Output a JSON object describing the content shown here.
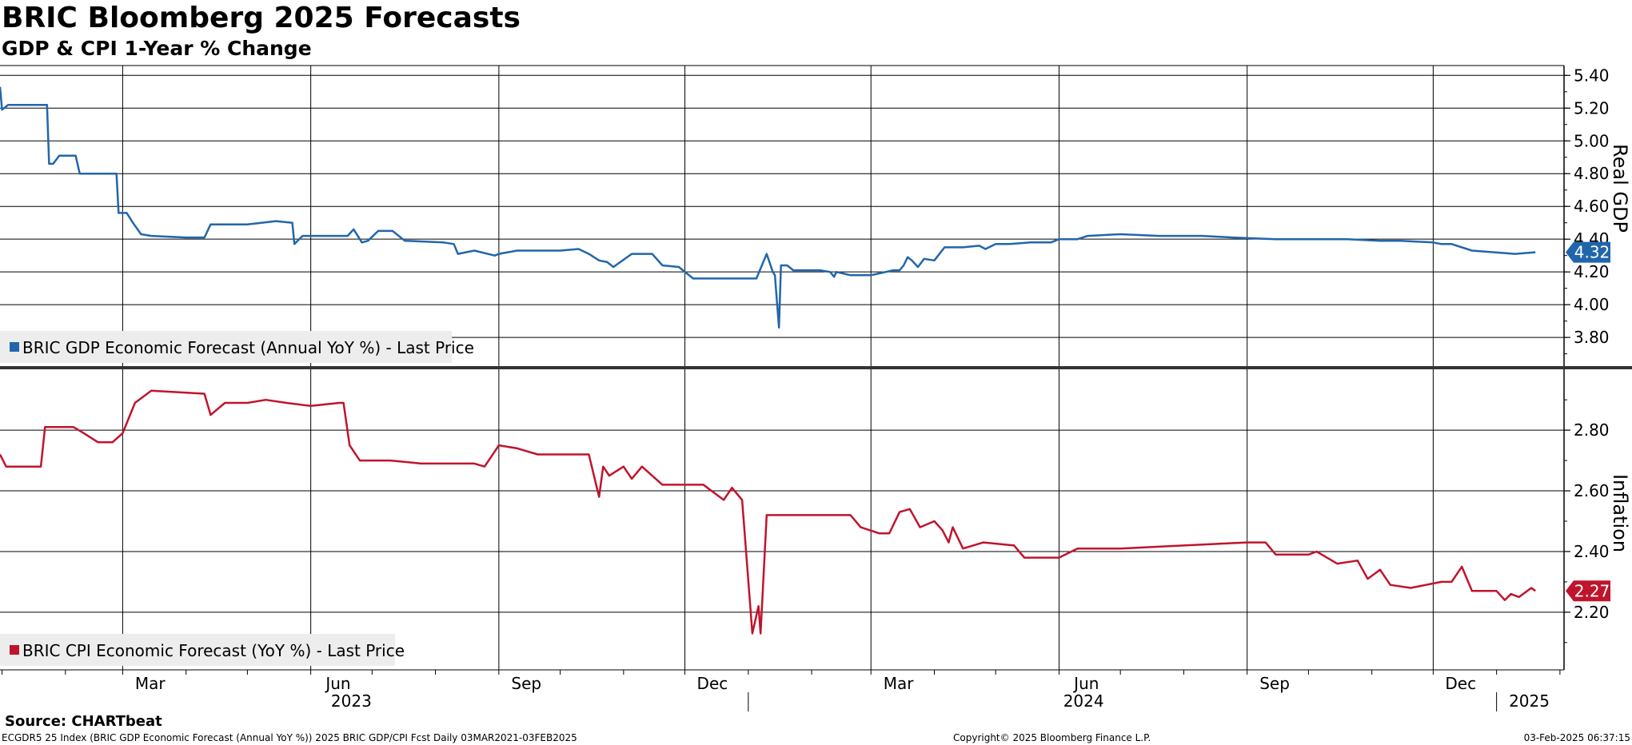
{
  "title": "BRIC Bloomberg 2025 Forecasts",
  "subtitle": "GDP & CPI 1-Year % Change",
  "source": "Source: CHARTbeat",
  "footer": {
    "left": "ECGDR5 25 Index (BRIC GDP Economic Forecast (Annual YoY %)) 2025 BRIC GDP/CPI Fcst  Daily 03MAR2021-03FEB2025",
    "middle": "Copyright© 2025 Bloomberg Finance L.P.",
    "right": "03-Feb-2025 06:37:15"
  },
  "chart_data": [
    {
      "type": "line",
      "ylabel": "Real GDP",
      "ylim": [
        3.62,
        5.46
      ],
      "yticks": [
        3.8,
        4.0,
        4.2,
        4.4,
        4.6,
        4.8,
        5.0,
        5.2,
        5.4
      ],
      "ytick_labels": [
        "3.80",
        "4.00",
        "4.20",
        "4.40",
        "4.60",
        "4.80",
        "5.00",
        "5.20",
        "5.40"
      ],
      "grid": true,
      "legend_position": "bottom-left",
      "last_value_label": "4.32",
      "series": [
        {
          "name": "BRIC GDP Economic Forecast (Annual YoY %) - Last Price",
          "color": "#2166ac",
          "x": [
            "2022-12-31",
            "2023-01-01",
            "2023-01-04",
            "2023-01-11",
            "2023-01-23",
            "2023-01-24",
            "2023-01-26",
            "2023-01-29",
            "2023-02-06",
            "2023-02-08",
            "2023-02-15",
            "2023-02-26",
            "2023-02-27",
            "2023-03-03",
            "2023-03-06",
            "2023-03-10",
            "2023-03-15",
            "2023-04-01",
            "2023-04-10",
            "2023-04-13",
            "2023-05-01",
            "2023-05-15",
            "2023-05-23",
            "2023-05-24",
            "2023-05-28",
            "2023-06-15",
            "2023-06-19",
            "2023-06-22",
            "2023-06-26",
            "2023-06-29",
            "2023-07-04",
            "2023-07-11",
            "2023-07-17",
            "2023-08-05",
            "2023-08-10",
            "2023-08-12",
            "2023-08-20",
            "2023-08-30",
            "2023-09-01",
            "2023-09-10",
            "2023-10-01",
            "2023-10-10",
            "2023-10-15",
            "2023-10-20",
            "2023-10-24",
            "2023-10-27",
            "2023-11-05",
            "2023-11-15",
            "2023-11-20",
            "2023-11-28",
            "2023-12-05",
            "2023-12-20",
            "2024-01-05",
            "2024-01-10",
            "2024-01-13",
            "2024-01-14",
            "2024-01-16",
            "2024-01-17",
            "2024-01-20",
            "2024-01-23",
            "2024-01-28",
            "2024-02-05",
            "2024-02-10",
            "2024-02-12",
            "2024-02-13",
            "2024-02-20",
            "2024-03-01",
            "2024-03-12",
            "2024-03-15",
            "2024-03-17",
            "2024-03-19",
            "2024-03-21",
            "2024-03-24",
            "2024-03-27",
            "2024-04-01",
            "2024-04-06",
            "2024-04-15",
            "2024-04-23",
            "2024-04-26",
            "2024-05-01",
            "2024-05-08",
            "2024-05-18",
            "2024-05-28",
            "2024-06-01",
            "2024-06-10",
            "2024-06-15",
            "2024-07-01",
            "2024-07-20",
            "2024-08-10",
            "2024-08-25",
            "2024-09-15",
            "2024-10-05",
            "2024-10-20",
            "2024-11-05",
            "2024-11-15",
            "2024-12-01",
            "2024-12-05",
            "2024-12-10",
            "2024-12-20",
            "2025-01-10",
            "2025-01-20"
          ],
          "y": [
            5.33,
            5.19,
            5.22,
            5.22,
            5.22,
            4.86,
            4.86,
            4.91,
            4.91,
            4.8,
            4.8,
            4.8,
            4.56,
            4.56,
            4.5,
            4.43,
            4.42,
            4.41,
            4.41,
            4.49,
            4.49,
            4.51,
            4.5,
            4.37,
            4.42,
            4.42,
            4.42,
            4.46,
            4.38,
            4.39,
            4.45,
            4.45,
            4.39,
            4.38,
            4.37,
            4.31,
            4.33,
            4.3,
            4.31,
            4.33,
            4.33,
            4.34,
            4.31,
            4.27,
            4.26,
            4.23,
            4.31,
            4.31,
            4.24,
            4.23,
            4.16,
            4.16,
            4.16,
            4.31,
            4.2,
            4.18,
            3.86,
            4.24,
            4.24,
            4.21,
            4.21,
            4.21,
            4.2,
            4.17,
            4.2,
            4.18,
            4.18,
            4.21,
            4.21,
            4.24,
            4.29,
            4.27,
            4.23,
            4.28,
            4.27,
            4.35,
            4.35,
            4.36,
            4.34,
            4.37,
            4.37,
            4.38,
            4.38,
            4.4,
            4.4,
            4.42,
            4.43,
            4.42,
            4.42,
            4.41,
            4.4,
            4.4,
            4.4,
            4.39,
            4.39,
            4.38,
            4.37,
            4.37,
            4.33,
            4.31,
            4.32
          ]
        }
      ]
    },
    {
      "type": "line",
      "ylabel": "Inflation",
      "ylim": [
        2.01,
        2.99
      ],
      "yticks": [
        2.2,
        2.4,
        2.6,
        2.8
      ],
      "ytick_labels": [
        "2.20",
        "2.40",
        "2.60",
        "2.80"
      ],
      "grid": true,
      "legend_position": "bottom-left",
      "last_value_label": "2.27",
      "series": [
        {
          "name": "BRIC CPI Economic Forecast (YoY %) - Last Price",
          "color": "#c0142c",
          "x": [
            "2022-12-31",
            "2023-01-03",
            "2023-01-20",
            "2023-01-22",
            "2023-02-05",
            "2023-02-10",
            "2023-02-17",
            "2023-02-24",
            "2023-03-01",
            "2023-03-07",
            "2023-03-15",
            "2023-04-10",
            "2023-04-13",
            "2023-04-20",
            "2023-05-01",
            "2023-05-10",
            "2023-05-20",
            "2023-06-01",
            "2023-06-15",
            "2023-06-17",
            "2023-06-20",
            "2023-06-25",
            "2023-07-10",
            "2023-07-25",
            "2023-08-20",
            "2023-08-25",
            "2023-09-01",
            "2023-09-10",
            "2023-09-20",
            "2023-10-01",
            "2023-10-15",
            "2023-10-20",
            "2023-10-22",
            "2023-10-25",
            "2023-11-01",
            "2023-11-05",
            "2023-11-10",
            "2023-11-15",
            "2023-11-20",
            "2023-12-10",
            "2023-12-20",
            "2023-12-24",
            "2023-12-29",
            "2024-01-03",
            "2024-01-06",
            "2024-01-07",
            "2024-01-10",
            "2024-01-12",
            "2024-01-14",
            "2024-01-15",
            "2024-02-20",
            "2024-02-25",
            "2024-03-05",
            "2024-03-10",
            "2024-03-15",
            "2024-03-20",
            "2024-03-25",
            "2024-04-01",
            "2024-04-05",
            "2024-04-08",
            "2024-04-10",
            "2024-04-15",
            "2024-04-25",
            "2024-05-10",
            "2024-05-15",
            "2024-06-01",
            "2024-06-10",
            "2024-07-01",
            "2024-08-01",
            "2024-09-01",
            "2024-09-10",
            "2024-09-15",
            "2024-10-01",
            "2024-10-05",
            "2024-10-15",
            "2024-10-25",
            "2024-10-30",
            "2024-11-05",
            "2024-11-10",
            "2024-11-20",
            "2024-12-05",
            "2024-12-10",
            "2024-12-15",
            "2024-12-20",
            "2025-01-01",
            "2025-01-05",
            "2025-01-08",
            "2025-01-12",
            "2025-01-18",
            "2025-01-20"
          ],
          "y": [
            2.72,
            2.68,
            2.68,
            2.81,
            2.81,
            2.79,
            2.76,
            2.76,
            2.79,
            2.89,
            2.93,
            2.92,
            2.85,
            2.89,
            2.89,
            2.9,
            2.89,
            2.88,
            2.89,
            2.89,
            2.75,
            2.7,
            2.7,
            2.69,
            2.69,
            2.68,
            2.75,
            2.74,
            2.72,
            2.72,
            2.72,
            2.58,
            2.68,
            2.65,
            2.68,
            2.64,
            2.68,
            2.65,
            2.62,
            2.62,
            2.57,
            2.61,
            2.57,
            2.13,
            2.22,
            2.13,
            2.52,
            2.52,
            2.52,
            2.52,
            2.52,
            2.48,
            2.46,
            2.46,
            2.53,
            2.54,
            2.48,
            2.5,
            2.47,
            2.43,
            2.48,
            2.41,
            2.43,
            2.42,
            2.38,
            2.38,
            2.41,
            2.41,
            2.42,
            2.43,
            2.43,
            2.39,
            2.39,
            2.4,
            2.36,
            2.37,
            2.31,
            2.34,
            2.29,
            2.28,
            2.3,
            2.3,
            2.35,
            2.27,
            2.27,
            2.24,
            2.26,
            2.25,
            2.28,
            2.27
          ]
        }
      ]
    }
  ],
  "x_axis": {
    "month_ticks": [
      "Mar",
      "Jun",
      "Sep",
      "Dec",
      "Mar",
      "Jun",
      "Sep",
      "Dec"
    ],
    "year_labels": [
      "2023",
      "2024",
      "2025"
    ]
  }
}
